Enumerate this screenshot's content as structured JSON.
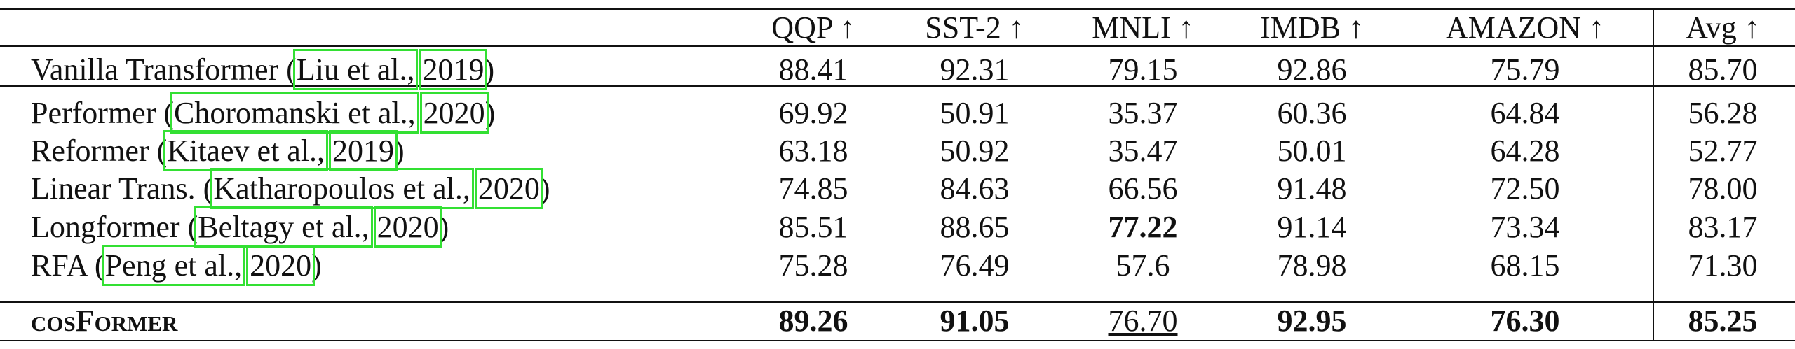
{
  "table": {
    "header": [
      "QQP ↑",
      "SST-2 ↑",
      "MNLI ↑",
      "IMDB ↑",
      "AMAZON ↑",
      "Avg ↑"
    ],
    "rows": [
      {
        "method": {
          "name": "Vanilla Transformer (",
          "cite": "Liu et al.,",
          "year": "2019",
          "close": ")"
        },
        "cells": [
          "88.41",
          "92.31",
          "79.15",
          "92.86",
          "75.79",
          "85.70"
        ]
      },
      {
        "method": {
          "name": "Performer (",
          "cite": "Choromanski et al.,",
          "year": "2020",
          "close": ")"
        },
        "cells": [
          "69.92",
          "50.91",
          "35.37",
          "60.36",
          "64.84",
          "56.28"
        ]
      },
      {
        "method": {
          "name": "Reformer (",
          "cite": "Kitaev et al.,",
          "year": "2019",
          "close": ")"
        },
        "cells": [
          "63.18",
          "50.92",
          "35.47",
          "50.01",
          "64.28",
          "52.77"
        ]
      },
      {
        "method": {
          "name": "Linear Trans. (",
          "cite": "Katharopoulos et al.,",
          "year": "2020",
          "close": ")"
        },
        "cells": [
          "74.85",
          "84.63",
          "66.56",
          "91.48",
          "72.50",
          "78.00"
        ]
      },
      {
        "method": {
          "name": "Longformer (",
          "cite": "Beltagy et al.,",
          "year": "2020",
          "close": ")"
        },
        "cells": [
          "85.51",
          "88.65",
          "77.22",
          "91.14",
          "73.34",
          "83.17"
        ],
        "bold_cols": [
          2
        ]
      },
      {
        "method": {
          "name": "RFA (",
          "cite": "Peng et al.,",
          "year": "2020",
          "close": ")"
        },
        "cells": [
          "75.28",
          "76.49",
          "57.6",
          "78.98",
          "68.15",
          "71.30"
        ]
      },
      {
        "method": {
          "name": "cosFormer"
        },
        "cells": [
          "89.26",
          "91.05",
          "76.70",
          "92.95",
          "76.30",
          "85.25"
        ],
        "bold_cols": [
          0,
          1,
          3,
          4,
          5
        ],
        "underline_cols": [
          2
        ],
        "bold_name": true
      }
    ]
  }
}
